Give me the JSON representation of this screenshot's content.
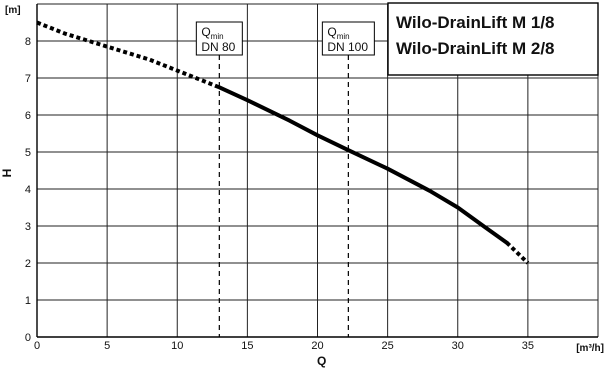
{
  "chart_data": {
    "type": "line",
    "title_lines": [
      "Wilo-DrainLift M 1/8",
      "Wilo-DrainLift M 2/8"
    ],
    "xlabel": "Q",
    "ylabel": "H",
    "x_unit": "[m³/h]",
    "y_unit": "[m]",
    "xlim": [
      0,
      40
    ],
    "ylim": [
      0,
      9
    ],
    "x_ticks": [
      0,
      5,
      10,
      15,
      20,
      25,
      30,
      35
    ],
    "y_ticks": [
      0,
      1,
      2,
      3,
      4,
      5,
      6,
      7,
      8
    ],
    "grid": true,
    "series": [
      {
        "style": "solid",
        "points": [
          [
            13,
            6.75
          ],
          [
            15,
            6.4
          ],
          [
            18,
            5.85
          ],
          [
            20,
            5.45
          ],
          [
            22.2,
            5.05
          ],
          [
            25,
            4.55
          ],
          [
            28,
            3.95
          ],
          [
            30,
            3.5
          ],
          [
            32,
            2.95
          ],
          [
            33.5,
            2.55
          ]
        ]
      },
      {
        "style": "dotted",
        "points": [
          [
            0,
            8.5
          ],
          [
            2,
            8.2
          ],
          [
            5,
            7.85
          ],
          [
            8,
            7.5
          ],
          [
            10,
            7.2
          ],
          [
            13,
            6.75
          ]
        ]
      },
      {
        "style": "dotted",
        "points": [
          [
            33.5,
            2.55
          ],
          [
            35,
            2.0
          ]
        ]
      }
    ],
    "annotations": [
      {
        "x": 13,
        "main": "Q",
        "sub": "min",
        "line2": "DN 80"
      },
      {
        "x": 22.2,
        "main": "Q",
        "sub": "min",
        "line2": "DN 100"
      }
    ]
  }
}
